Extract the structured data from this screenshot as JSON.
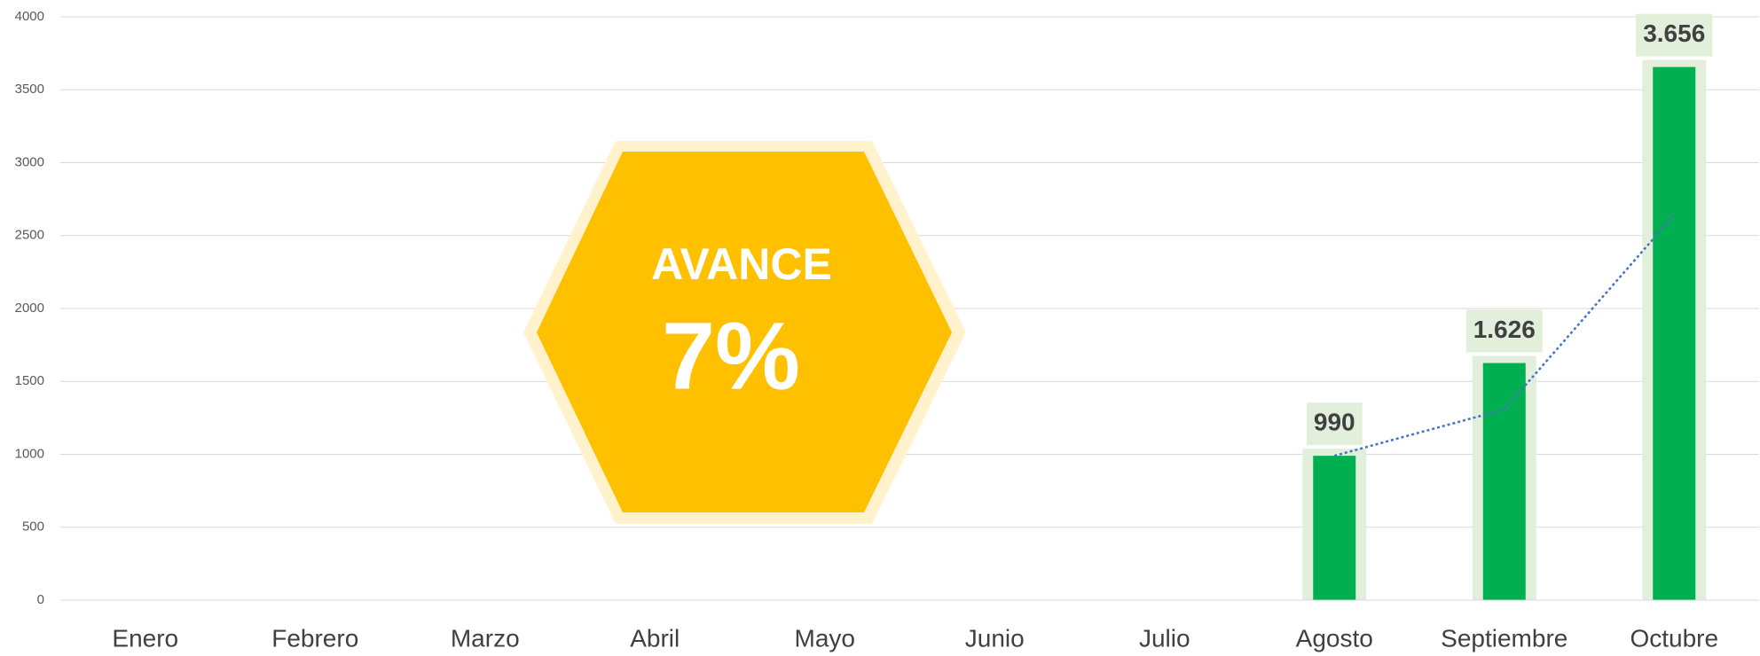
{
  "chart_data": {
    "type": "bar",
    "categories": [
      "Enero",
      "Febrero",
      "Marzo",
      "Abril",
      "Mayo",
      "Junio",
      "Julio",
      "Agosto",
      "Septiembre",
      "Octubre"
    ],
    "values": [
      null,
      null,
      null,
      null,
      null,
      null,
      null,
      990,
      1626,
      3656
    ],
    "value_labels": [
      null,
      null,
      null,
      null,
      null,
      null,
      null,
      "990",
      "1.626",
      "3.656"
    ],
    "color": "#00b050",
    "trend": {
      "color": "#4472c4",
      "values": [
        null,
        null,
        null,
        null,
        null,
        null,
        null,
        990,
        1308,
        2641
      ]
    },
    "ylim": [
      0,
      4000
    ],
    "yticks": [
      0,
      500,
      1000,
      1500,
      2000,
      2500,
      3000,
      3500,
      4000
    ],
    "grid": true,
    "badge": {
      "title": "AVANCE",
      "label": "7%"
    }
  }
}
